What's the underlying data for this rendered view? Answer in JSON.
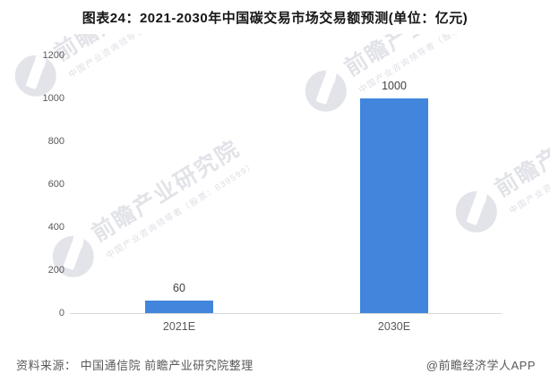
{
  "title": "图表24：2021-2030年中国碳交易市场交易额预测(单位：亿元)",
  "chart_data": {
    "type": "bar",
    "title": "图表24：2021-2030年中国碳交易市场交易额预测",
    "unit": "亿元",
    "categories": [
      "2021E",
      "2030E"
    ],
    "values": [
      60,
      1000
    ],
    "value_labels": [
      "60",
      "1000"
    ],
    "ylim": [
      0,
      1200
    ],
    "yticks": [
      0,
      200,
      400,
      600,
      800,
      1000,
      1200
    ],
    "grid": false,
    "legend": false,
    "bar_color": "#4285DC",
    "axis_line_color": "#D9D9D9",
    "tick_label_color": "#595959",
    "value_label_color": "#404040"
  },
  "footer": {
    "source": "资料来源： 中国通信院 前瞻产业研究院整理",
    "credit": "@前瞻经济学人APP"
  },
  "watermark": {
    "brand": "前瞻产业研究院",
    "tagline": "中国产业咨询领导者（股票：839599）",
    "color": "#C9CCD6"
  }
}
